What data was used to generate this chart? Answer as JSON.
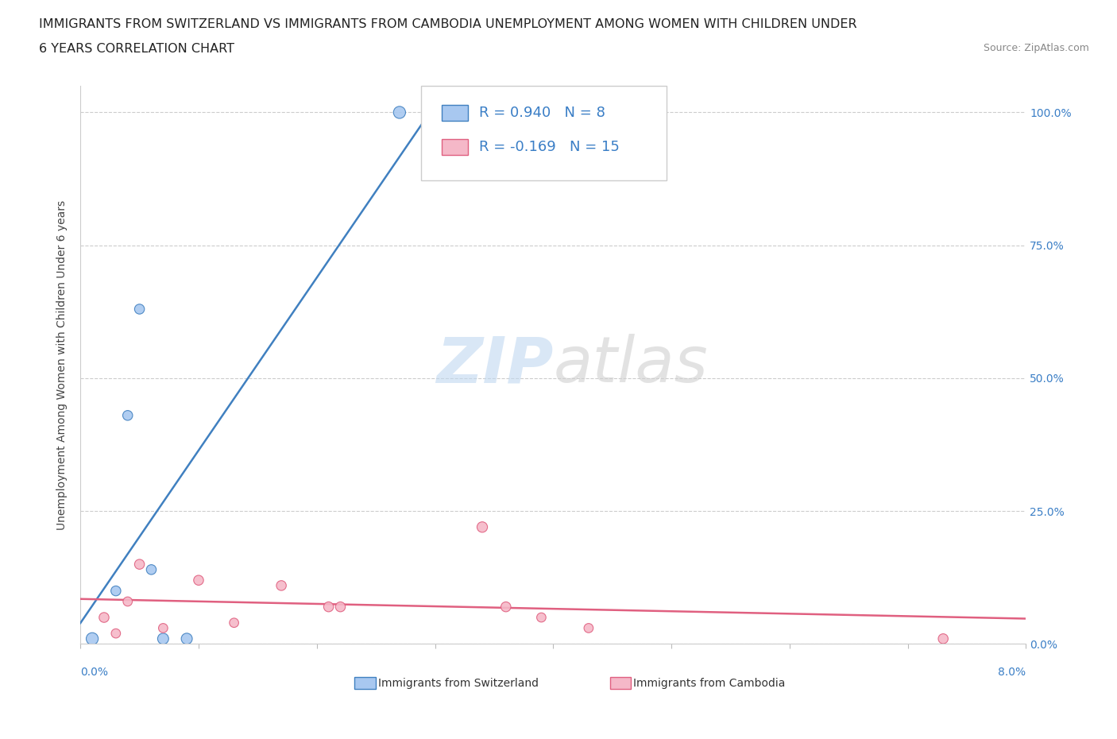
{
  "title_line1": "IMMIGRANTS FROM SWITZERLAND VS IMMIGRANTS FROM CAMBODIA UNEMPLOYMENT AMONG WOMEN WITH CHILDREN UNDER",
  "title_line2": "6 YEARS CORRELATION CHART",
  "source_text": "Source: ZipAtlas.com",
  "ylabel": "Unemployment Among Women with Children Under 6 years",
  "watermark": "ZIPatlas",
  "swiss_color": "#A8C8F0",
  "swiss_line_color": "#4080C0",
  "cambodia_color": "#F5B8C8",
  "cambodia_line_color": "#E06080",
  "r_swiss": 0.94,
  "n_swiss": 8,
  "r_cambodia": -0.169,
  "n_cambodia": 15,
  "swiss_x": [
    0.001,
    0.003,
    0.004,
    0.005,
    0.006,
    0.007,
    0.009,
    0.027
  ],
  "swiss_y": [
    0.01,
    0.1,
    0.43,
    0.63,
    0.14,
    0.01,
    0.01,
    1.0
  ],
  "cambodia_x": [
    0.002,
    0.003,
    0.004,
    0.005,
    0.007,
    0.01,
    0.013,
    0.017,
    0.021,
    0.022,
    0.034,
    0.036,
    0.039,
    0.043,
    0.073
  ],
  "cambodia_y": [
    0.05,
    0.02,
    0.08,
    0.15,
    0.03,
    0.12,
    0.04,
    0.11,
    0.07,
    0.07,
    0.22,
    0.07,
    0.05,
    0.03,
    0.01
  ],
  "swiss_sizes": [
    120,
    80,
    80,
    80,
    80,
    100,
    100,
    120
  ],
  "cambodia_sizes": [
    80,
    70,
    70,
    80,
    70,
    80,
    70,
    80,
    80,
    80,
    90,
    80,
    70,
    70,
    80
  ],
  "xlim": [
    0.0,
    0.08
  ],
  "ylim": [
    0.0,
    1.05
  ],
  "yticks": [
    0.0,
    0.25,
    0.5,
    0.75,
    1.0
  ],
  "ytick_labels": [
    "0.0%",
    "25.0%",
    "50.0%",
    "75.0%",
    "100.0%"
  ],
  "xtick_left_label": "0.0%",
  "xtick_right_label": "8.0%",
  "background_color": "#FFFFFF",
  "grid_color": "#CCCCCC",
  "title_fontsize": 11.5,
  "axis_label_fontsize": 10,
  "tick_fontsize": 10,
  "legend_fontsize": 13
}
